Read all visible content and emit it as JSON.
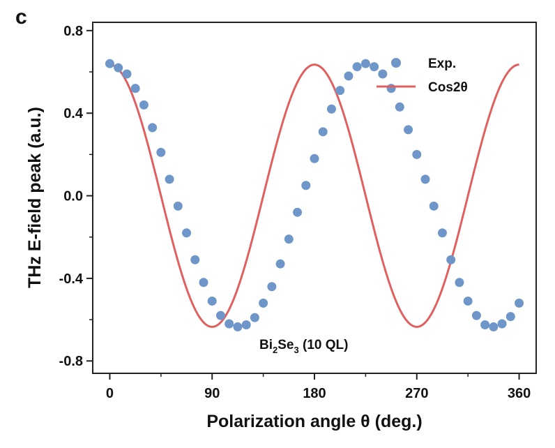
{
  "figure": {
    "panel_label": "c"
  },
  "chart_data": {
    "type": "scatter",
    "title": "",
    "xlabel": "Polarization angle θ (deg.)",
    "ylabel": "THz E-field peak (a.u.)",
    "xlim": [
      -15,
      375
    ],
    "ylim": [
      -0.86,
      0.84
    ],
    "xticks": [
      0,
      90,
      180,
      270,
      360
    ],
    "xtick_labels": [
      "0",
      "90",
      "180",
      "270",
      "360"
    ],
    "yticks": [
      0.8,
      0.4,
      0.0,
      -0.4,
      -0.8
    ],
    "ytick_labels": [
      "0.8",
      "0.4",
      "0.0",
      "-0.4",
      "-0.8"
    ],
    "grid": false,
    "legend_position": "top-right",
    "series": [
      {
        "name": "Exp.",
        "kind": "scatter",
        "color": "#6f96c9",
        "x": [
          0,
          7.5,
          15,
          22.5,
          30,
          37.5,
          45,
          52.5,
          60,
          67.5,
          75,
          82.5,
          90,
          97.5,
          105,
          112.5,
          120,
          127.5,
          135,
          142.5,
          150,
          157.5,
          165,
          172.5,
          180,
          187.5,
          195,
          202.5,
          210,
          217.5,
          225,
          232.5,
          240,
          247.5,
          255,
          262.5,
          270,
          277.5,
          285,
          292.5,
          300,
          307.5,
          315,
          322.5,
          330,
          337.5,
          345,
          352.5,
          360
        ],
        "y": [
          0.64,
          0.62,
          0.59,
          0.52,
          0.44,
          0.33,
          0.21,
          0.08,
          -0.05,
          -0.18,
          -0.31,
          -0.42,
          -0.51,
          -0.58,
          -0.62,
          -0.635,
          -0.625,
          -0.59,
          -0.52,
          -0.44,
          -0.33,
          -0.21,
          -0.08,
          0.05,
          0.18,
          0.31,
          0.42,
          0.51,
          0.58,
          0.625,
          0.64,
          0.625,
          0.59,
          0.52,
          0.43,
          0.32,
          0.2,
          0.08,
          -0.05,
          -0.18,
          -0.31,
          -0.42,
          -0.51,
          -0.58,
          -0.625,
          -0.635,
          -0.62,
          -0.585,
          -0.52
        ]
      },
      {
        "name": "Cos2θ",
        "kind": "line",
        "color": "#e0605f",
        "amplitude": 0.635
      }
    ],
    "annotations": [
      {
        "text_main": "Bi",
        "sub1": "2",
        "text_mid": "Se",
        "sub2": "3",
        "text_end": " (10 QL)"
      }
    ]
  }
}
